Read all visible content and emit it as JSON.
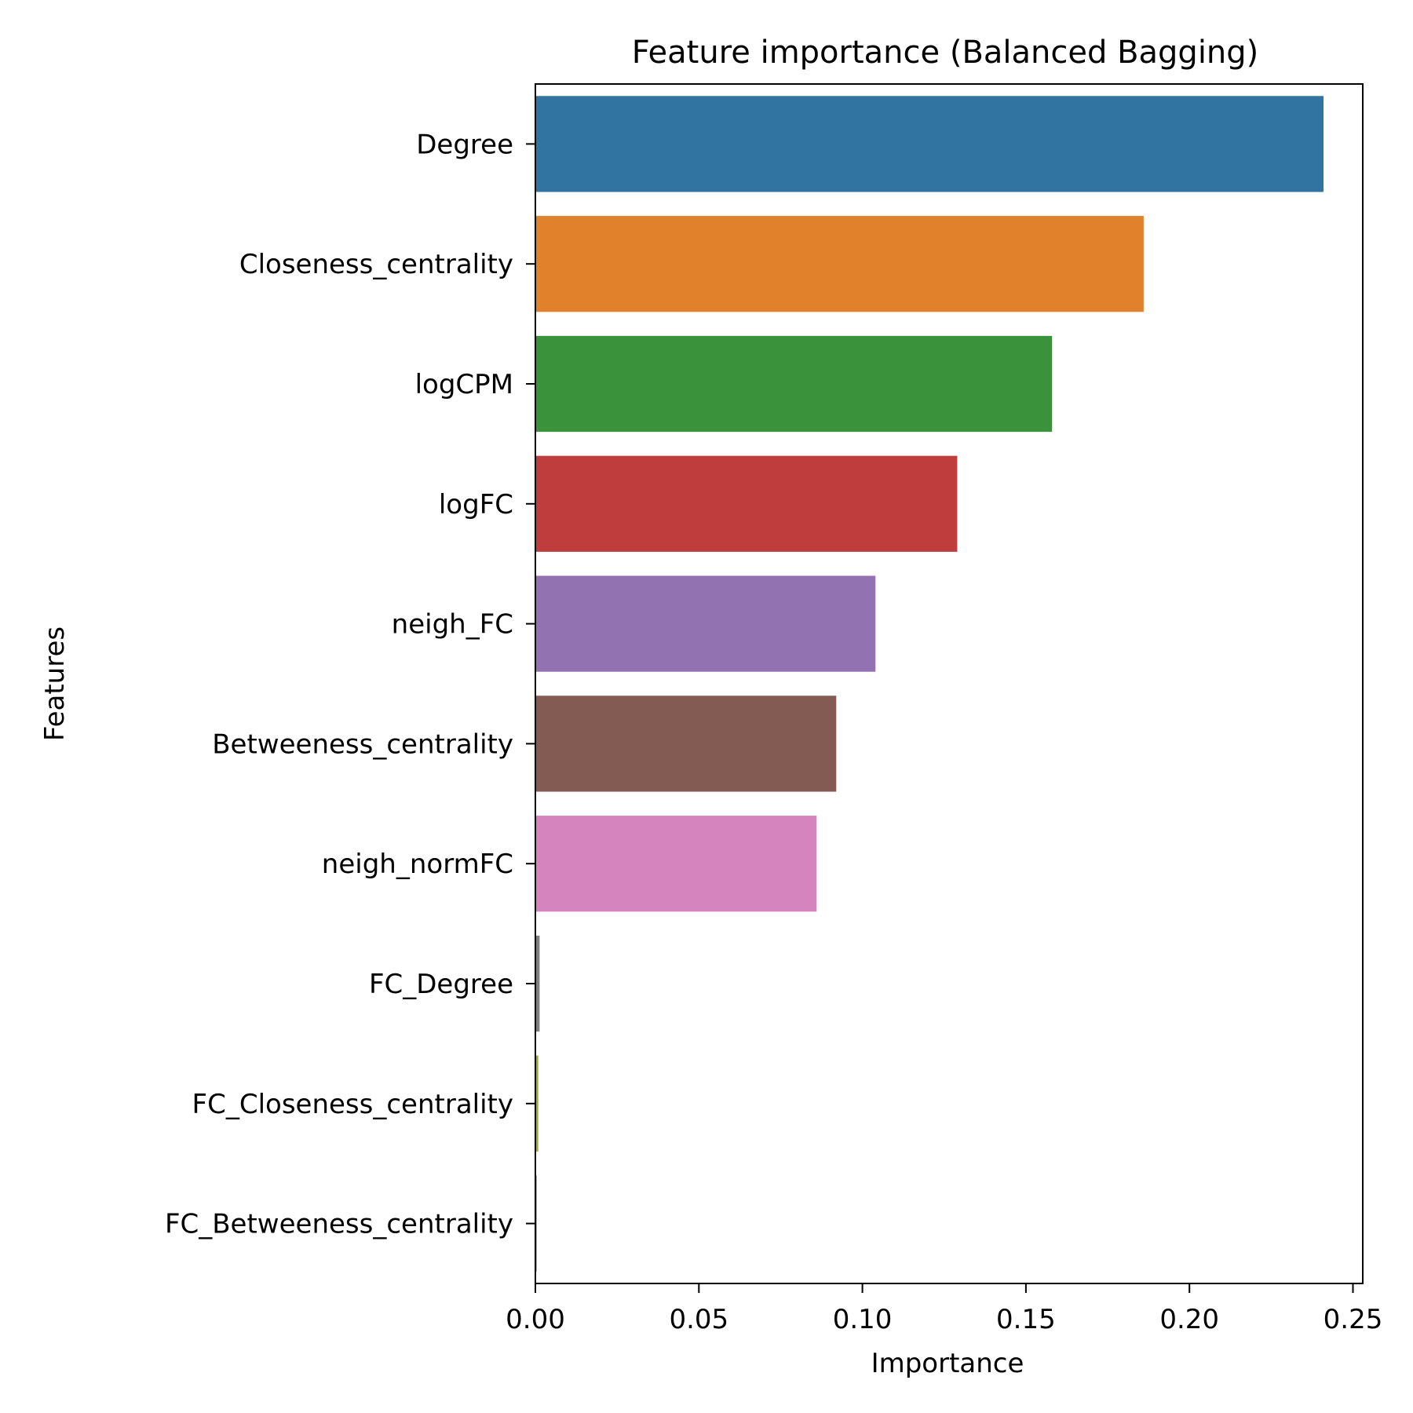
{
  "chart_data": {
    "type": "bar",
    "orientation": "horizontal",
    "title": "Feature importance (Balanced Bagging)",
    "xlabel": "Importance",
    "ylabel": "Features",
    "xlim": [
      0,
      0.253
    ],
    "xticks": [
      0.0,
      0.05,
      0.1,
      0.15,
      0.2,
      0.25
    ],
    "xtick_labels": [
      "0.00",
      "0.05",
      "0.10",
      "0.15",
      "0.20",
      "0.25"
    ],
    "grid": false,
    "categories": [
      "Degree",
      "Closeness_centrality",
      "logCPM",
      "logFC",
      "neigh_FC",
      "Betweeness_centrality",
      "neigh_normFC",
      "FC_Degree",
      "FC_Closeness_centrality",
      "FC_Betweeness_centrality"
    ],
    "values": [
      0.241,
      0.186,
      0.158,
      0.129,
      0.104,
      0.092,
      0.086,
      0.0013,
      0.0009,
      0.0004
    ],
    "colors": [
      "#3274a1",
      "#e1812c",
      "#3a923a",
      "#c03d3e",
      "#9372b2",
      "#845b53",
      "#d684bd",
      "#7f7f7f",
      "#a9aa35",
      "#2e9fb5"
    ]
  }
}
